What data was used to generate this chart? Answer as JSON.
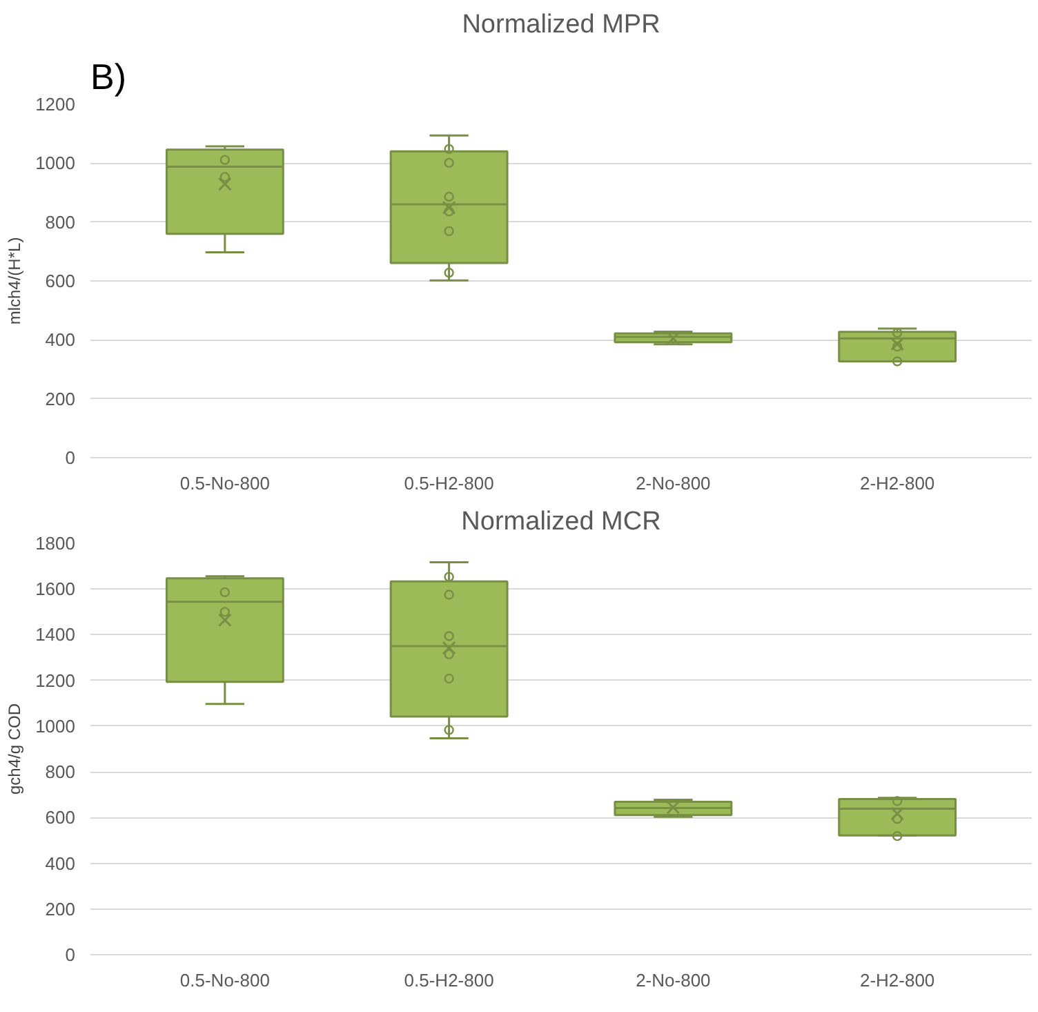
{
  "chart_data": [
    {
      "type": "box",
      "title": "Normalized MPR",
      "ylabel": "mlch4/(H*L)",
      "annotations": [
        "B)"
      ],
      "categories": [
        "0.5-No-800",
        "0.5-H2-800",
        "2-No-800",
        "2-H2-800"
      ],
      "ylim": [
        0,
        1200
      ],
      "yticks": [
        0,
        200,
        400,
        600,
        800,
        1000,
        1200
      ],
      "grid": "y",
      "series": [
        {
          "type": "box",
          "color": "#9bbb59",
          "boxes": [
            {
              "low": 697,
              "q1": 760,
              "median": 988,
              "q3": 1046,
              "high": 1057,
              "mean": 929
            },
            {
              "low": 602,
              "q1": 661,
              "median": 860,
              "q3": 1040,
              "high": 1094,
              "mean": 849
            },
            {
              "low": 385,
              "q1": 392,
              "median": 410,
              "q3": 422,
              "high": 428,
              "mean": 405
            },
            {
              "low": 327,
              "q1": 327,
              "median": 405,
              "q3": 427,
              "high": 438,
              "mean": 386
            }
          ]
        },
        {
          "type": "scatter",
          "color": "#778f44",
          "marker": "circle",
          "x": [
            "0.5-No-800",
            "0.5-No-800",
            "0.5-H2-800",
            "0.5-H2-800",
            "0.5-H2-800",
            "0.5-H2-800",
            "0.5-H2-800",
            "0.5-H2-800",
            "2-H2-800",
            "2-H2-800",
            "2-H2-800"
          ],
          "values": [
            1011,
            953,
            1048,
            1001,
            886,
            836,
            769,
            628,
            424,
            377,
            327
          ]
        }
      ]
    },
    {
      "type": "box",
      "title": "Normalized MCR",
      "ylabel": "gch4/g COD",
      "categories": [
        "0.5-No-800",
        "0.5-H2-800",
        "2-No-800",
        "2-H2-800"
      ],
      "ylim": [
        0,
        1800
      ],
      "yticks": [
        0,
        200,
        400,
        600,
        800,
        1000,
        1200,
        1400,
        1600,
        1800
      ],
      "grid": "y",
      "series": [
        {
          "type": "box",
          "color": "#9bbb59",
          "boxes": [
            {
              "low": 1097,
              "q1": 1194,
              "median": 1544,
              "q3": 1647,
              "high": 1656,
              "mean": 1464
            },
            {
              "low": 947,
              "q1": 1042,
              "median": 1350,
              "q3": 1633,
              "high": 1717,
              "mean": 1342
            },
            {
              "low": 603,
              "q1": 611,
              "median": 642,
              "q3": 669,
              "high": 678,
              "mean": 644
            },
            {
              "low": 522,
              "q1": 522,
              "median": 639,
              "q3": 681,
              "high": 686,
              "mean": 617
            }
          ]
        },
        {
          "type": "scatter",
          "color": "#778f44",
          "marker": "circle",
          "x": [
            "0.5-No-800",
            "0.5-No-800",
            "0.5-H2-800",
            "0.5-H2-800",
            "0.5-H2-800",
            "0.5-H2-800",
            "0.5-H2-800",
            "0.5-H2-800",
            "2-H2-800",
            "2-H2-800",
            "2-H2-800"
          ],
          "values": [
            1586,
            1500,
            1653,
            1575,
            1394,
            1314,
            1208,
            983,
            672,
            594,
            519
          ]
        }
      ]
    }
  ]
}
